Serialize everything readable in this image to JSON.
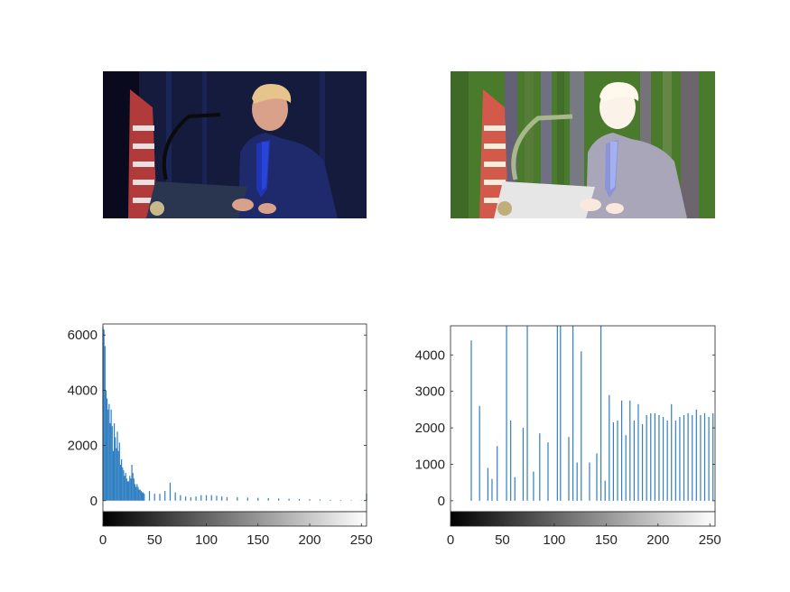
{
  "images": {
    "left": {
      "icon": "original-photo-speaker-at-podium"
    },
    "right": {
      "icon": "equalized-photo-speaker-at-podium"
    }
  },
  "chart_data": [
    {
      "type": "bar",
      "title": "",
      "xlabel": "",
      "ylabel": "",
      "xlim": [
        0,
        255
      ],
      "ylim": [
        -400,
        6400
      ],
      "xticks": [
        0,
        50,
        100,
        150,
        200,
        250
      ],
      "xtick_labels": [
        "0",
        "50",
        "100",
        "150",
        "200",
        "250"
      ],
      "yticks": [
        0,
        2000,
        4000,
        6000
      ],
      "ytick_labels": [
        "0",
        "2000",
        "4000",
        "6000"
      ],
      "colorbar": "grayscale",
      "bar_color": "#2f7fc2",
      "x": [
        0,
        1,
        2,
        3,
        4,
        5,
        6,
        7,
        8,
        9,
        10,
        11,
        12,
        13,
        14,
        15,
        16,
        17,
        18,
        19,
        20,
        21,
        22,
        23,
        24,
        25,
        26,
        27,
        28,
        29,
        30,
        31,
        32,
        33,
        34,
        35,
        36,
        37,
        38,
        39,
        40,
        45,
        50,
        55,
        60,
        65,
        70,
        75,
        80,
        85,
        90,
        95,
        100,
        105,
        110,
        115,
        120,
        130,
        140,
        150,
        160,
        170,
        180,
        190,
        200,
        210,
        220,
        230,
        240,
        250,
        255
      ],
      "values": [
        6300,
        6200,
        5600,
        4000,
        3700,
        3300,
        3500,
        2800,
        3300,
        2700,
        1800,
        2800,
        2300,
        1900,
        2500,
        1800,
        2100,
        1300,
        1500,
        1200,
        1100,
        900,
        1000,
        800,
        700,
        700,
        900,
        800,
        1300,
        1000,
        800,
        600,
        500,
        600,
        500,
        400,
        400,
        350,
        300,
        300,
        250,
        350,
        250,
        250,
        350,
        650,
        300,
        200,
        150,
        120,
        150,
        200,
        200,
        200,
        180,
        150,
        130,
        120,
        110,
        100,
        90,
        80,
        70,
        60,
        50,
        40,
        30,
        20,
        15,
        10,
        250
      ]
    },
    {
      "type": "bar",
      "title": "",
      "xlabel": "",
      "ylabel": "",
      "xlim": [
        0,
        255
      ],
      "ylim": [
        -300,
        4800
      ],
      "xticks": [
        0,
        50,
        100,
        150,
        200,
        250
      ],
      "xtick_labels": [
        "0",
        "50",
        "100",
        "150",
        "200",
        "250"
      ],
      "yticks": [
        0,
        1000,
        2000,
        3000,
        4000
      ],
      "ytick_labels": [
        "0",
        "1000",
        "2000",
        "3000",
        "4000"
      ],
      "colorbar": "grayscale",
      "bar_color": "#2f7fc2",
      "x": [
        20,
        28,
        36,
        40,
        45,
        54,
        58,
        62,
        70,
        74,
        80,
        86,
        94,
        103,
        106,
        114,
        118,
        122,
        126,
        134,
        141,
        145,
        149,
        153,
        157,
        161,
        165,
        169,
        173,
        177,
        181,
        185,
        189,
        193,
        197,
        201,
        205,
        209,
        213,
        217,
        221,
        225,
        229,
        233,
        237,
        241,
        245,
        249,
        253
      ],
      "values": [
        4400,
        2600,
        900,
        600,
        1500,
        4800,
        2200,
        650,
        2000,
        4800,
        800,
        1850,
        1600,
        4800,
        4800,
        1750,
        4800,
        1050,
        4100,
        1050,
        1300,
        4800,
        550,
        2900,
        2150,
        2200,
        2750,
        1800,
        2750,
        2200,
        2650,
        2100,
        2350,
        2400,
        2400,
        2350,
        2300,
        2200,
        2650,
        2200,
        2300,
        2350,
        2400,
        2350,
        2500,
        2350,
        2400,
        2300,
        2400
      ]
    }
  ]
}
